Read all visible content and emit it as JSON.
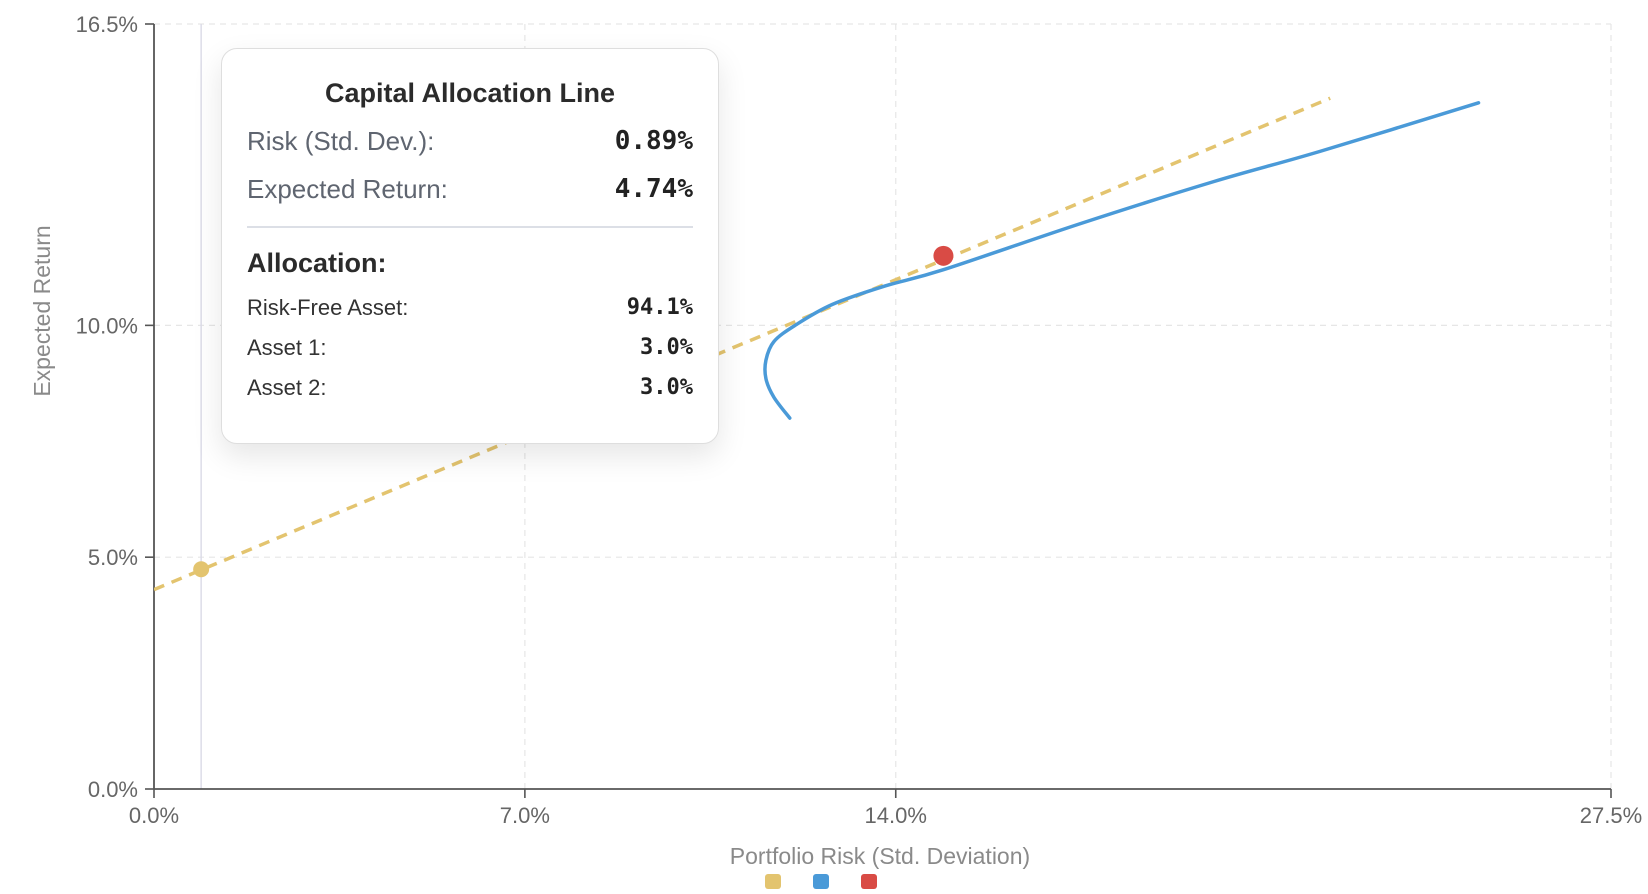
{
  "chart_data": {
    "type": "line",
    "title": "",
    "xlabel": "Portfolio Risk (Std. Deviation)",
    "ylabel": "Expected Return",
    "xlim": [
      0,
      27.5
    ],
    "ylim": [
      0,
      16.5
    ],
    "x_ticks": [
      "0.0%",
      "7.0%",
      "14.0%",
      "27.5%"
    ],
    "x_tick_values": [
      0,
      7,
      14,
      27.5
    ],
    "y_ticks": [
      "0.0%",
      "5.0%",
      "10.0%",
      "16.5%"
    ],
    "y_tick_values": [
      0,
      5,
      10,
      16.5
    ],
    "grid": true,
    "legend_position": "bottom-center",
    "series": [
      {
        "kind": "dashed-line",
        "color": "#e3c46f",
        "x": [
          0,
          22.2
        ],
        "y": [
          4.3,
          14.9
        ]
      },
      {
        "kind": "curve",
        "color": "#4a9ad8",
        "x": [
          12.0,
          11.7,
          11.55,
          11.55,
          11.7,
          12.1,
          12.8,
          13.8,
          14.9,
          17.5,
          20.0,
          22.0,
          25.0
        ],
        "y": [
          8.0,
          8.45,
          8.85,
          9.25,
          9.65,
          10.0,
          10.45,
          10.85,
          11.2,
          12.2,
          13.1,
          13.75,
          14.8
        ]
      },
      {
        "kind": "point",
        "color": "#d94b45",
        "x": [
          14.9
        ],
        "y": [
          11.5
        ]
      },
      {
        "kind": "point",
        "color": "#e3c46f",
        "x": [
          0.89
        ],
        "y": [
          4.74
        ]
      }
    ],
    "crosshair_x": 0.89
  },
  "tooltip": {
    "title": "Capital Allocation Line",
    "risk_label": "Risk (Std. Dev.):",
    "risk_value": "0.89%",
    "return_label": "Expected Return:",
    "return_value": "4.74%",
    "allocation_heading": "Allocation:",
    "allocations": [
      {
        "label": "Risk-Free Asset:",
        "value": "94.1%"
      },
      {
        "label": "Asset 1:",
        "value": "3.0%"
      },
      {
        "label": "Asset 2:",
        "value": "3.0%"
      }
    ]
  },
  "legend": [
    {
      "color": "#e3c46f"
    },
    {
      "color": "#4a9ad8"
    },
    {
      "color": "#d94b45"
    }
  ]
}
